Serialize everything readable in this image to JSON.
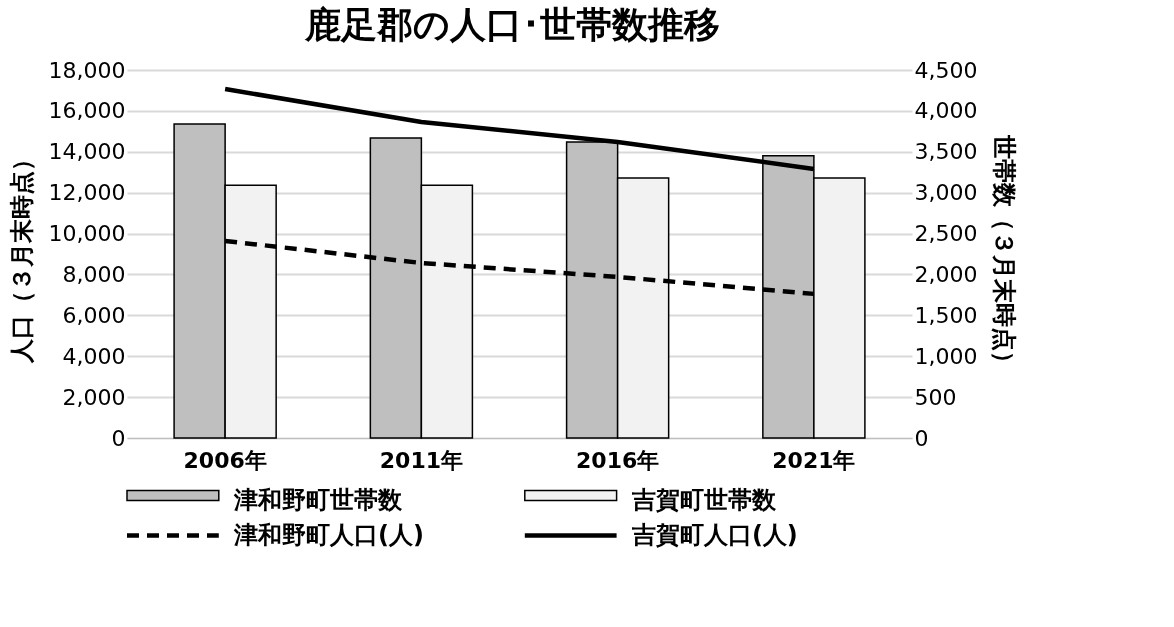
{
  "chart_data": {
    "type": "bar",
    "title": "鹿足郡の人口･世帯数推移",
    "ylabel": "人口（３月末時点）",
    "y2label": "世帯数（３月末時点）",
    "categories": [
      "2006年",
      "2011年",
      "2016年",
      "2021年"
    ],
    "ylim": [
      0,
      18000
    ],
    "yticks": [
      0,
      {
        "value": 2000,
        "label": "2,000"
      },
      {
        "value": 4000,
        "label": "4,000"
      },
      {
        "value": 6000,
        "label": "6,000"
      },
      {
        "value": 8000,
        "label": "8,000"
      },
      {
        "value": 10000,
        "label": "10,000"
      },
      {
        "value": 12000,
        "label": "12,000"
      },
      {
        "value": 14000,
        "label": "14,000"
      },
      {
        "value": 16000,
        "label": "16,000"
      },
      {
        "value": 18000,
        "label": "18,000"
      }
    ],
    "y2lim": [
      0,
      4500
    ],
    "y2ticks": [
      0,
      500,
      {
        "value": 1000,
        "label": "1,000"
      },
      {
        "value": 1500,
        "label": "1,500"
      },
      {
        "value": 2000,
        "label": "2,000"
      },
      {
        "value": 2500,
        "label": "2,500"
      },
      {
        "value": 3000,
        "label": "3,000"
      },
      {
        "value": 3500,
        "label": "3,500"
      },
      {
        "value": 4000,
        "label": "4,000"
      },
      {
        "value": 4500,
        "label": "4,500"
      }
    ],
    "grid": "y",
    "legend": "bottom",
    "series": [
      {
        "name": "津和野町世帯数",
        "axis": "y2",
        "color": "#bfbfbf",
        "values": [
          3840,
          3670,
          3620,
          3450
        ]
      },
      {
        "name": "吉賀町世帯数",
        "axis": "y2",
        "color": "#f2f2f2",
        "values": [
          3090,
          3090,
          3180,
          3180
        ]
      },
      {
        "name": "津和野町人口(人)",
        "type": "line",
        "color": "#000000",
        "line_style": "dashed",
        "values": [
          9640,
          8560,
          7880,
          7050
        ]
      },
      {
        "name": "吉賀町人口(人)",
        "type": "line",
        "color": "#000000",
        "line_style": "solid",
        "values": [
          17070,
          15460,
          14480,
          13160
        ]
      }
    ]
  }
}
